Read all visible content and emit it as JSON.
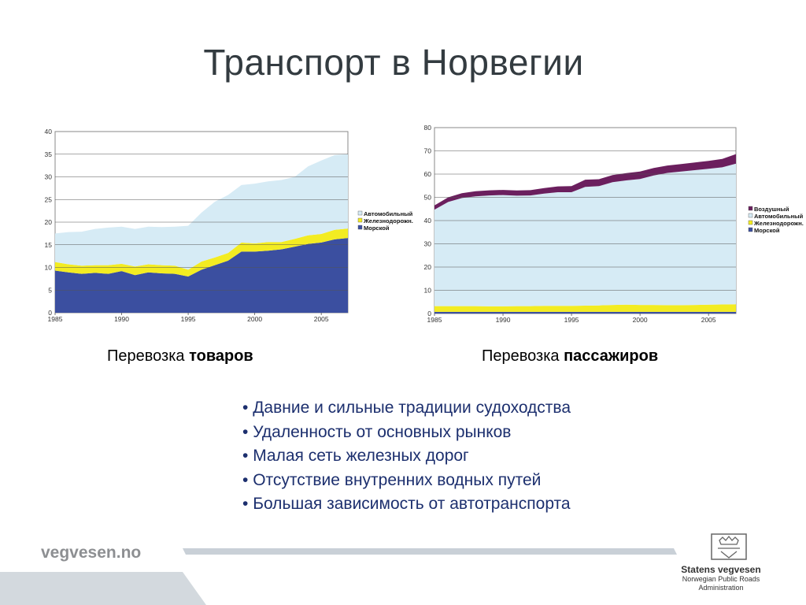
{
  "slide": {
    "title": "Транспорт в Норвегии",
    "caption_goods_prefix": "Перевозка ",
    "caption_goods_bold": "товаров",
    "caption_pass_prefix": "Перевозка ",
    "caption_pass_bold": "пассажиров",
    "bullets": [
      "Давние и сильные традиции судоходства",
      "Удаленность от основных рынков",
      "Малая сеть железных дорог",
      "Отсутствие внутренних водных путей",
      "Большая зависимость от автотранспорта"
    ],
    "brand": "vegvesen.no",
    "org_name": "Statens vegvesen",
    "org_sub1": "Norwegian Public Roads",
    "org_sub2": "Administration",
    "colors": {
      "title": "#333b40",
      "bullets": "#1c2f6e",
      "stripe": "#b9c2cb"
    },
    "icons": [
      "vegvesen-crown-logo-icon"
    ]
  },
  "chart_data": [
    {
      "type": "area",
      "stacked": true,
      "x": [
        1985,
        1986,
        1987,
        1988,
        1989,
        1990,
        1991,
        1992,
        1993,
        1994,
        1995,
        1996,
        1997,
        1998,
        1999,
        2000,
        2001,
        2002,
        2003,
        2004,
        2005,
        2006,
        2007
      ],
      "ylim": [
        0,
        40
      ],
      "yticks": [
        0,
        5,
        10,
        15,
        20,
        25,
        30,
        35,
        40
      ],
      "xticks": [
        1985,
        1990,
        1995,
        2000,
        2005
      ],
      "grid": true,
      "legend_position": "right",
      "series": [
        {
          "name": "Морской",
          "color": "#3b4fa0",
          "values": [
            9.3,
            8.9,
            8.6,
            8.8,
            8.6,
            9.2,
            8.3,
            8.9,
            8.7,
            8.6,
            8.0,
            9.5,
            10.5,
            11.5,
            13.5,
            13.5,
            13.7,
            14.0,
            14.6,
            15.2,
            15.5,
            16.2,
            16.5
          ]
        },
        {
          "name": "Железнодорожн.",
          "color": "#f3ec22",
          "values": [
            1.9,
            1.8,
            1.8,
            1.7,
            1.9,
            1.6,
            1.9,
            1.8,
            1.8,
            1.8,
            1.5,
            1.8,
            1.7,
            1.7,
            2.0,
            1.8,
            1.9,
            1.6,
            1.7,
            1.9,
            1.9,
            2.1,
            2.1
          ]
        },
        {
          "name": "Автомобильный",
          "color": "#d6ebf5",
          "values": [
            6.3,
            7.1,
            7.5,
            8.0,
            8.3,
            8.2,
            8.3,
            8.3,
            8.4,
            8.6,
            9.7,
            10.8,
            12.3,
            12.8,
            12.7,
            13.2,
            13.4,
            13.7,
            13.7,
            15.2,
            16.2,
            16.5,
            16.4
          ]
        }
      ]
    },
    {
      "type": "area",
      "stacked": true,
      "x": [
        1985,
        1986,
        1987,
        1988,
        1989,
        1990,
        1991,
        1992,
        1993,
        1994,
        1995,
        1996,
        1997,
        1998,
        1999,
        2000,
        2001,
        2002,
        2003,
        2004,
        2005,
        2006,
        2007
      ],
      "ylim": [
        0,
        80
      ],
      "yticks": [
        0,
        10,
        20,
        30,
        40,
        50,
        60,
        70,
        80
      ],
      "xticks": [
        1985,
        1990,
        1995,
        2000,
        2005
      ],
      "grid": true,
      "legend_position": "right",
      "series": [
        {
          "name": "Морской",
          "color": "#3b4fa0",
          "values": [
            0.7,
            0.7,
            0.7,
            0.7,
            0.7,
            0.7,
            0.7,
            0.7,
            0.7,
            0.7,
            0.7,
            0.7,
            0.7,
            0.7,
            0.7,
            0.7,
            0.7,
            0.7,
            0.7,
            0.7,
            0.7,
            0.7,
            0.7
          ]
        },
        {
          "name": "Железнодорожн.",
          "color": "#f3ec22",
          "values": [
            2.5,
            2.5,
            2.5,
            2.5,
            2.4,
            2.4,
            2.5,
            2.5,
            2.6,
            2.6,
            2.6,
            2.7,
            2.8,
            3.0,
            3.1,
            3.0,
            3.0,
            2.9,
            2.9,
            3.0,
            3.1,
            3.2,
            3.3
          ]
        },
        {
          "name": "Автомобильный",
          "color": "#d6ebf5",
          "values": [
            41.5,
            44.8,
            46.5,
            47.2,
            47.7,
            47.9,
            47.5,
            47.6,
            48.3,
            48.9,
            48.9,
            51.1,
            51.3,
            52.8,
            53.5,
            54.2,
            55.7,
            56.9,
            57.5,
            58.0,
            58.5,
            59.0,
            60.5
          ]
        },
        {
          "name": "Воздушный",
          "color": "#6b1f5e",
          "values": [
            1.8,
            2.0,
            2.1,
            2.2,
            2.2,
            2.2,
            2.3,
            2.3,
            2.4,
            2.5,
            2.6,
            3.1,
            3.0,
            3.1,
            3.1,
            3.2,
            3.2,
            3.2,
            3.2,
            3.3,
            3.4,
            3.6,
            4.1
          ]
        }
      ]
    }
  ]
}
